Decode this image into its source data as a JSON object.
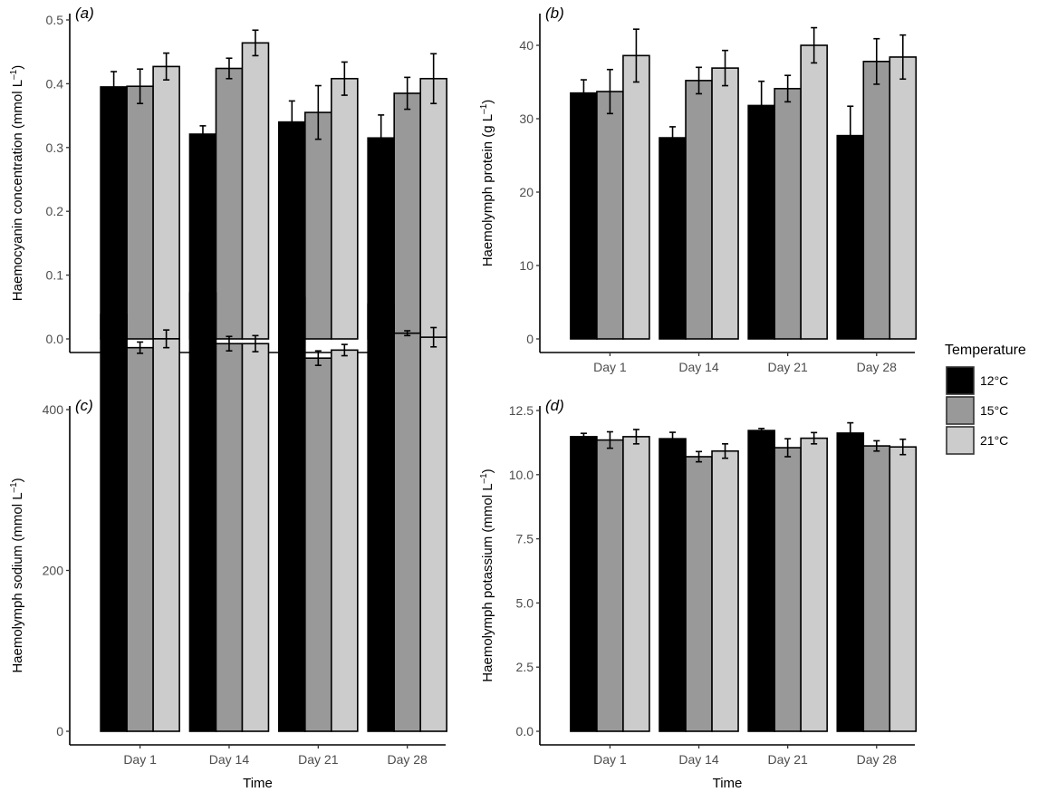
{
  "legend": {
    "title": "Temperature",
    "entries": [
      {
        "label": "12°C",
        "color": "#000000"
      },
      {
        "label": "15°C",
        "color": "#999999"
      },
      {
        "label": "21°C",
        "color": "#cccccc"
      }
    ]
  },
  "chart_data": [
    {
      "type": "bar",
      "panel_label": "a",
      "title": "",
      "xlabel": "",
      "ylabel": "Haemocyanin concentration (mmol L",
      "ylabel_sup": "–1",
      "ylabel_close": ")",
      "categories": [
        "Day 1",
        "Day 14",
        "Day 21",
        "Day 28"
      ],
      "ylim": [
        0,
        0.5
      ],
      "yticks": [
        0.0,
        0.1,
        0.2,
        0.3,
        0.4,
        0.5
      ],
      "ytick_labels": [
        "0.0",
        "0.1",
        "0.2",
        "0.3",
        "0.4",
        "0.5"
      ],
      "series": [
        {
          "name": "12°C",
          "values": [
            0.395,
            0.321,
            0.34,
            0.315
          ],
          "errors": [
            0.024,
            0.013,
            0.033,
            0.036
          ]
        },
        {
          "name": "15°C",
          "values": [
            0.396,
            0.424,
            0.355,
            0.385
          ],
          "errors": [
            0.027,
            0.016,
            0.042,
            0.025
          ]
        },
        {
          "name": "21°C",
          "values": [
            0.427,
            0.464,
            0.408,
            0.408
          ],
          "errors": [
            0.021,
            0.02,
            0.026,
            0.039
          ]
        }
      ]
    },
    {
      "type": "bar",
      "panel_label": "b",
      "title": "",
      "xlabel": "",
      "ylabel": "Haemolymph protein (g L",
      "ylabel_sup": "–1",
      "ylabel_close": ")",
      "categories": [
        "Day 1",
        "Day 14",
        "Day 21",
        "Day 28"
      ],
      "ylim": [
        0,
        42
      ],
      "yticks": [
        0,
        10,
        20,
        30,
        40
      ],
      "ytick_labels": [
        "0",
        "10",
        "20",
        "30",
        "40"
      ],
      "series": [
        {
          "name": "12°C",
          "values": [
            33.5,
            27.4,
            31.8,
            27.7
          ],
          "errors": [
            1.8,
            1.5,
            3.3,
            4.0
          ]
        },
        {
          "name": "15°C",
          "values": [
            33.7,
            35.2,
            34.1,
            37.8
          ],
          "errors": [
            3.0,
            1.8,
            1.8,
            3.1
          ]
        },
        {
          "name": "21°C",
          "values": [
            38.6,
            36.9,
            40.0,
            38.4
          ],
          "errors": [
            3.6,
            2.4,
            2.4,
            3.0
          ]
        }
      ]
    },
    {
      "type": "bar",
      "panel_label": "c",
      "title": "",
      "xlabel": "Time",
      "ylabel": "Haemolymph sodium (mmol L",
      "ylabel_sup": "–1",
      "ylabel_close": ")",
      "categories": [
        "Day 1",
        "Day 14",
        "Day 21",
        "Day 28"
      ],
      "ylim": [
        0,
        570
      ],
      "yticks": [
        0,
        200,
        400
      ],
      "ytick_labels": [
        "0",
        "200",
        "400"
      ],
      "series": [
        {
          "name": "12°C",
          "values": [
            518,
            545,
            539,
            531
          ],
          "errors": [
            12,
            5,
            3,
            3
          ]
        },
        {
          "name": "15°C",
          "values": [
            477,
            482,
            464,
            495
          ],
          "errors": [
            7,
            9,
            9,
            3
          ]
        },
        {
          "name": "21°C",
          "values": [
            488,
            482,
            474,
            490
          ],
          "errors": [
            11,
            10,
            7,
            12
          ]
        }
      ]
    },
    {
      "type": "bar",
      "panel_label": "d",
      "title": "",
      "xlabel": "Time",
      "ylabel": "Haemolymph potassium (mmol L",
      "ylabel_sup": "–1",
      "ylabel_close": ")",
      "categories": [
        "Day 1",
        "Day 14",
        "Day 21",
        "Day 28"
      ],
      "ylim": [
        0,
        12.5
      ],
      "yticks": [
        0,
        2.5,
        5.0,
        7.5,
        10.0,
        12.5
      ],
      "ytick_labels": [
        "0.0",
        "2.5",
        "5.0",
        "7.5",
        "10.0",
        "12.5"
      ],
      "series": [
        {
          "name": "12°C",
          "values": [
            11.48,
            11.4,
            11.72,
            11.62
          ],
          "errors": [
            0.13,
            0.25,
            0.08,
            0.4
          ]
        },
        {
          "name": "15°C",
          "values": [
            11.35,
            10.7,
            11.05,
            11.12
          ],
          "errors": [
            0.32,
            0.2,
            0.35,
            0.2
          ]
        },
        {
          "name": "21°C",
          "values": [
            11.48,
            10.92,
            11.42,
            11.08
          ],
          "errors": [
            0.28,
            0.28,
            0.22,
            0.3
          ]
        }
      ]
    }
  ]
}
